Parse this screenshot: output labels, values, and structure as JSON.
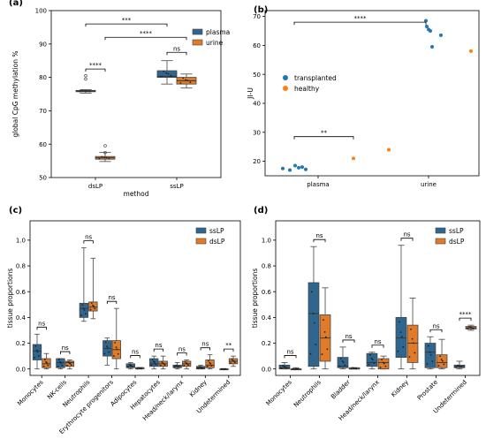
{
  "colors": {
    "blue": "#2f6690",
    "orange": "#e07b2a",
    "tan": "#a9724a",
    "dot_blue": "#1f77b4",
    "dot_orange": "#ff7f0e"
  },
  "chart_data": [
    {
      "panel_label": "(a)",
      "type": "box",
      "xlabel": "method",
      "ylabel": "global CpG methylation %",
      "categories": [
        "dsLP",
        "ssLP"
      ],
      "ylim": [
        50,
        100
      ],
      "yticks": [
        "50",
        "60",
        "70",
        "80",
        "90",
        "100"
      ],
      "legend": {
        "position": "top-right",
        "entries": [
          "plasma",
          "urine"
        ]
      },
      "series": [
        {
          "name": "plasma",
          "color": "blue",
          "boxes": [
            {
              "category": "dsLP",
              "min": 75.3,
              "q1": 75.7,
              "median": 75.9,
              "q3": 76.1,
              "max": 76.3,
              "fliers": [
                79.5,
                80.5
              ]
            },
            {
              "category": "ssLP",
              "min": 78.0,
              "q1": 80.0,
              "median": 80.3,
              "q3": 82.0,
              "max": 85.0,
              "fliers": []
            }
          ]
        },
        {
          "name": "urine",
          "color": "orange",
          "boxes": [
            {
              "category": "dsLP",
              "min": 54.8,
              "q1": 55.5,
              "median": 55.9,
              "q3": 56.3,
              "max": 57.5,
              "fliers": [
                57.5,
                59.5
              ]
            },
            {
              "category": "ssLP",
              "min": 76.8,
              "q1": 78.0,
              "median": 79.0,
              "q3": 80.0,
              "max": 81.0,
              "fliers": []
            }
          ]
        }
      ],
      "annotations": [
        {
          "text": "***",
          "from": "dsLP plasma",
          "to": "ssLP plasma",
          "y": 96
        },
        {
          "text": "****",
          "from": "dsLP urine",
          "to": "ssLP urine",
          "y": 92
        },
        {
          "text": "****",
          "from": "dsLP plasma",
          "to": "dsLP urine",
          "y": 82.5
        },
        {
          "text": "ns",
          "from": "ssLP plasma",
          "to": "ssLP urine",
          "y": 87.5
        }
      ]
    },
    {
      "panel_label": "(b)",
      "type": "scatter",
      "ylabel": "JI-U",
      "categories": [
        "plasma",
        "urine"
      ],
      "ylim": [
        15,
        72
      ],
      "yticks": [
        "20",
        "30",
        "40",
        "50",
        "60",
        "70"
      ],
      "legend": {
        "position": "center-left",
        "entries": [
          "transplanted",
          "healthy"
        ]
      },
      "series": [
        {
          "name": "transplanted",
          "color": "dot_blue",
          "points": [
            {
              "category": "plasma",
              "y": 17.5
            },
            {
              "category": "plasma",
              "y": 17.0
            },
            {
              "category": "plasma",
              "y": 18.5
            },
            {
              "category": "plasma",
              "y": 17.8
            },
            {
              "category": "plasma",
              "y": 18.0
            },
            {
              "category": "plasma",
              "y": 17.2
            },
            {
              "category": "urine",
              "y": 68.5
            },
            {
              "category": "urine",
              "y": 66.5
            },
            {
              "category": "urine",
              "y": 65.5
            },
            {
              "category": "urine",
              "y": 65.0
            },
            {
              "category": "urine",
              "y": 63.5
            },
            {
              "category": "urine",
              "y": 59.5
            }
          ]
        },
        {
          "name": "healthy",
          "color": "dot_orange",
          "points": [
            {
              "category": "plasma",
              "y": 21.0
            },
            {
              "category": "plasma",
              "y": 24.0
            },
            {
              "category": "urine",
              "y": 58.0
            }
          ]
        }
      ],
      "annotations": [
        {
          "text": "****",
          "from": "plasma",
          "to": "urine",
          "y": 68
        },
        {
          "text": "**",
          "from": "plasma transplanted",
          "to": "plasma healthy",
          "y": 28.5
        }
      ]
    },
    {
      "panel_label": "(c)",
      "type": "box",
      "ylabel": "tissue proportions",
      "categories": [
        "Monocytes",
        "NK-cells",
        "Neutrophils",
        "Erythrocyte progenitors",
        "Adipocytes",
        "Hepatocytes",
        "Head/neck/larynx",
        "Kidney",
        "Undetermined"
      ],
      "ylim": [
        -0.05,
        1.15
      ],
      "yticks": [
        "0.0",
        "0.2",
        "0.4",
        "0.6",
        "0.8",
        "1.0"
      ],
      "legend": {
        "position": "top-right",
        "entries": [
          "ssLP",
          "dsLP"
        ]
      },
      "series": [
        {
          "name": "ssLP",
          "color": "blue",
          "boxes": [
            {
              "min": 0.0,
              "q1": 0.07,
              "median": 0.14,
              "q3": 0.19,
              "max": 0.27
            },
            {
              "min": 0.0,
              "q1": 0.01,
              "median": 0.05,
              "q3": 0.08,
              "max": 0.08
            },
            {
              "min": 0.37,
              "q1": 0.4,
              "median": 0.47,
              "q3": 0.51,
              "max": 0.94
            },
            {
              "min": 0.03,
              "q1": 0.1,
              "median": 0.16,
              "q3": 0.22,
              "max": 0.24
            },
            {
              "min": 0.0,
              "q1": 0.01,
              "median": 0.02,
              "q3": 0.04,
              "max": 0.05
            },
            {
              "min": 0.0,
              "q1": 0.02,
              "median": 0.04,
              "q3": 0.08,
              "max": 0.1
            },
            {
              "min": 0.0,
              "q1": 0.01,
              "median": 0.02,
              "q3": 0.03,
              "max": 0.05
            },
            {
              "min": 0.0,
              "q1": 0.0,
              "median": 0.01,
              "q3": 0.02,
              "max": 0.03
            },
            {
              "min": 0.0,
              "q1": 0.0,
              "median": 0.0,
              "q3": 0.0,
              "max": 0.0
            }
          ]
        },
        {
          "name": "dsLP",
          "color": "orange",
          "boxes": [
            {
              "min": 0.0,
              "q1": 0.01,
              "median": 0.04,
              "q3": 0.08,
              "max": 0.12
            },
            {
              "min": 0.0,
              "q1": 0.02,
              "median": 0.05,
              "q3": 0.06,
              "max": 0.07
            },
            {
              "min": 0.39,
              "q1": 0.45,
              "median": 0.48,
              "q3": 0.52,
              "max": 0.86
            },
            {
              "min": 0.0,
              "q1": 0.08,
              "median": 0.15,
              "q3": 0.22,
              "max": 0.47
            },
            {
              "min": 0.0,
              "q1": 0.0,
              "median": 0.01,
              "q3": 0.01,
              "max": 0.01
            },
            {
              "min": 0.0,
              "q1": 0.02,
              "median": 0.04,
              "q3": 0.06,
              "max": 0.1
            },
            {
              "min": 0.0,
              "q1": 0.02,
              "median": 0.04,
              "q3": 0.06,
              "max": 0.07
            },
            {
              "min": 0.0,
              "q1": 0.01,
              "median": 0.03,
              "q3": 0.07,
              "max": 0.11
            },
            {
              "min": 0.02,
              "q1": 0.04,
              "median": 0.06,
              "q3": 0.08,
              "max": 0.1
            }
          ]
        }
      ],
      "annotations": [
        {
          "category": "Monocytes",
          "text": "ns"
        },
        {
          "category": "NK-cells",
          "text": "ns"
        },
        {
          "category": "Neutrophils",
          "text": "ns"
        },
        {
          "category": "Erythrocyte progenitors",
          "text": "ns"
        },
        {
          "category": "Adipocytes",
          "text": "ns"
        },
        {
          "category": "Hepatocytes",
          "text": "ns"
        },
        {
          "category": "Head/neck/larynx",
          "text": "ns"
        },
        {
          "category": "Kidney",
          "text": "ns"
        },
        {
          "category": "Undetermined",
          "text": "**"
        }
      ]
    },
    {
      "panel_label": "(d)",
      "type": "box",
      "ylabel": "tissue proportions",
      "categories": [
        "Monocytes",
        "Neutrophils",
        "Bladder",
        "Head/neck/larynx",
        "Kidney",
        "Prostate",
        "Undetermined"
      ],
      "ylim": [
        -0.05,
        1.15
      ],
      "yticks": [
        "0.0",
        "0.2",
        "0.4",
        "0.6",
        "0.8",
        "1.0"
      ],
      "legend": {
        "position": "top-right",
        "entries": [
          "ssLP",
          "dsLP"
        ]
      },
      "series": [
        {
          "name": "ssLP",
          "color": "blue",
          "boxes": [
            {
              "min": 0.0,
              "q1": 0.0,
              "median": 0.01,
              "q3": 0.03,
              "max": 0.05
            },
            {
              "min": 0.0,
              "q1": 0.02,
              "median": 0.43,
              "q3": 0.67,
              "max": 0.95
            },
            {
              "min": 0.0,
              "q1": 0.01,
              "median": 0.02,
              "q3": 0.09,
              "max": 0.17
            },
            {
              "min": 0.0,
              "q1": 0.02,
              "median": 0.05,
              "q3": 0.12,
              "max": 0.13
            },
            {
              "min": 0.0,
              "q1": 0.09,
              "median": 0.24,
              "q3": 0.4,
              "max": 0.96
            },
            {
              "min": 0.0,
              "q1": 0.01,
              "median": 0.13,
              "q3": 0.2,
              "max": 0.25
            },
            {
              "min": 0.0,
              "q1": 0.01,
              "median": 0.02,
              "q3": 0.03,
              "max": 0.06
            }
          ]
        },
        {
          "name": "dsLP",
          "color": "orange",
          "boxes": [
            {
              "min": 0.0,
              "q1": 0.0,
              "median": 0.0,
              "q3": 0.0,
              "max": 0.01
            },
            {
              "min": 0.0,
              "q1": 0.06,
              "median": 0.24,
              "q3": 0.42,
              "max": 0.63
            },
            {
              "min": 0.0,
              "q1": 0.0,
              "median": 0.0,
              "q3": 0.01,
              "max": 0.01
            },
            {
              "min": 0.0,
              "q1": 0.0,
              "median": 0.05,
              "q3": 0.08,
              "max": 0.1
            },
            {
              "min": 0.0,
              "q1": 0.05,
              "median": 0.2,
              "q3": 0.34,
              "max": 0.55
            },
            {
              "min": 0.0,
              "q1": 0.01,
              "median": 0.05,
              "q3": 0.11,
              "max": 0.23
            },
            {
              "min": 0.3,
              "q1": 0.31,
              "median": 0.32,
              "q3": 0.33,
              "max": 0.34
            }
          ]
        }
      ],
      "annotations": [
        {
          "category": "Monocytes",
          "text": "ns"
        },
        {
          "category": "Neutrophils",
          "text": "ns"
        },
        {
          "category": "Bladder",
          "text": "ns"
        },
        {
          "category": "Head/neck/larynx",
          "text": "ns"
        },
        {
          "category": "Kidney",
          "text": "ns"
        },
        {
          "category": "Prostate",
          "text": "ns"
        },
        {
          "category": "Undetermined",
          "text": "****"
        }
      ]
    }
  ]
}
